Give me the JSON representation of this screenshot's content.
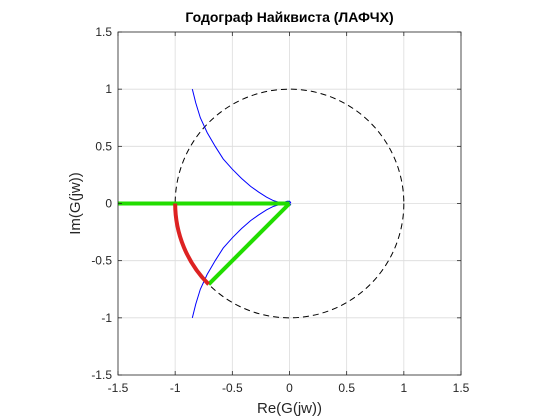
{
  "chart_data": {
    "type": "line",
    "title": "Годограф Найквиста (ЛАФЧХ)",
    "xlabel": "Re(G(jw))",
    "ylabel": "Im(G(jw))",
    "xlim": [
      -1.5,
      1.5
    ],
    "ylim": [
      -1.5,
      1.5
    ],
    "xticks": [
      -1.5,
      -1,
      -0.5,
      0,
      0.5,
      1,
      1.5
    ],
    "yticks": [
      -1.5,
      -1,
      -0.5,
      0,
      0.5,
      1,
      1.5
    ],
    "xtick_labels": [
      "-1.5",
      "-1",
      "-0.5",
      "0",
      "0.5",
      "1",
      "1.5"
    ],
    "ytick_labels": [
      "-1.5",
      "-1",
      "-0.5",
      "0",
      "0.5",
      "1",
      "1.5"
    ],
    "grid": true,
    "series": [
      {
        "style": "unit-circle-dashed",
        "color": "#000000",
        "center": [
          0,
          0
        ],
        "radius": 1
      },
      {
        "style": "nyquist-upper",
        "color": "#0000ff",
        "x": [
          -0.85,
          -0.82,
          -0.78,
          -0.72,
          -0.65,
          -0.58,
          -0.5,
          -0.42,
          -0.34,
          -0.27,
          -0.2,
          -0.14,
          -0.09,
          -0.05,
          -0.02,
          0.0,
          0.01,
          0.0
        ],
        "y": [
          1.0,
          0.88,
          0.75,
          0.62,
          0.5,
          0.39,
          0.3,
          0.22,
          0.15,
          0.1,
          0.055,
          0.025,
          0.01,
          0.01,
          0.02,
          0.02,
          0.01,
          0.0
        ]
      },
      {
        "style": "nyquist-lower",
        "color": "#0000ff",
        "x": [
          -0.85,
          -0.82,
          -0.78,
          -0.72,
          -0.65,
          -0.58,
          -0.5,
          -0.42,
          -0.34,
          -0.27,
          -0.2,
          -0.14,
          -0.09,
          -0.05,
          -0.02,
          0.0,
          0.01,
          0.0
        ],
        "y": [
          -1.0,
          -0.88,
          -0.75,
          -0.62,
          -0.5,
          -0.39,
          -0.3,
          -0.22,
          -0.15,
          -0.1,
          -0.055,
          -0.025,
          -0.01,
          -0.01,
          -0.02,
          -0.02,
          -0.01,
          0.0
        ]
      },
      {
        "style": "green-negative-axis",
        "color": "#22dd00",
        "x": [
          -1.5,
          0
        ],
        "y": [
          0,
          0
        ]
      },
      {
        "style": "green-crossover-line",
        "color": "#22dd00",
        "x": [
          0,
          -0.707
        ],
        "y": [
          0,
          -0.707
        ]
      },
      {
        "style": "red-phase-margin-arc",
        "color": "#dd2222",
        "center": [
          0,
          0
        ],
        "radius": 1,
        "angle_from_deg": 180,
        "angle_to_deg": 225
      }
    ]
  }
}
